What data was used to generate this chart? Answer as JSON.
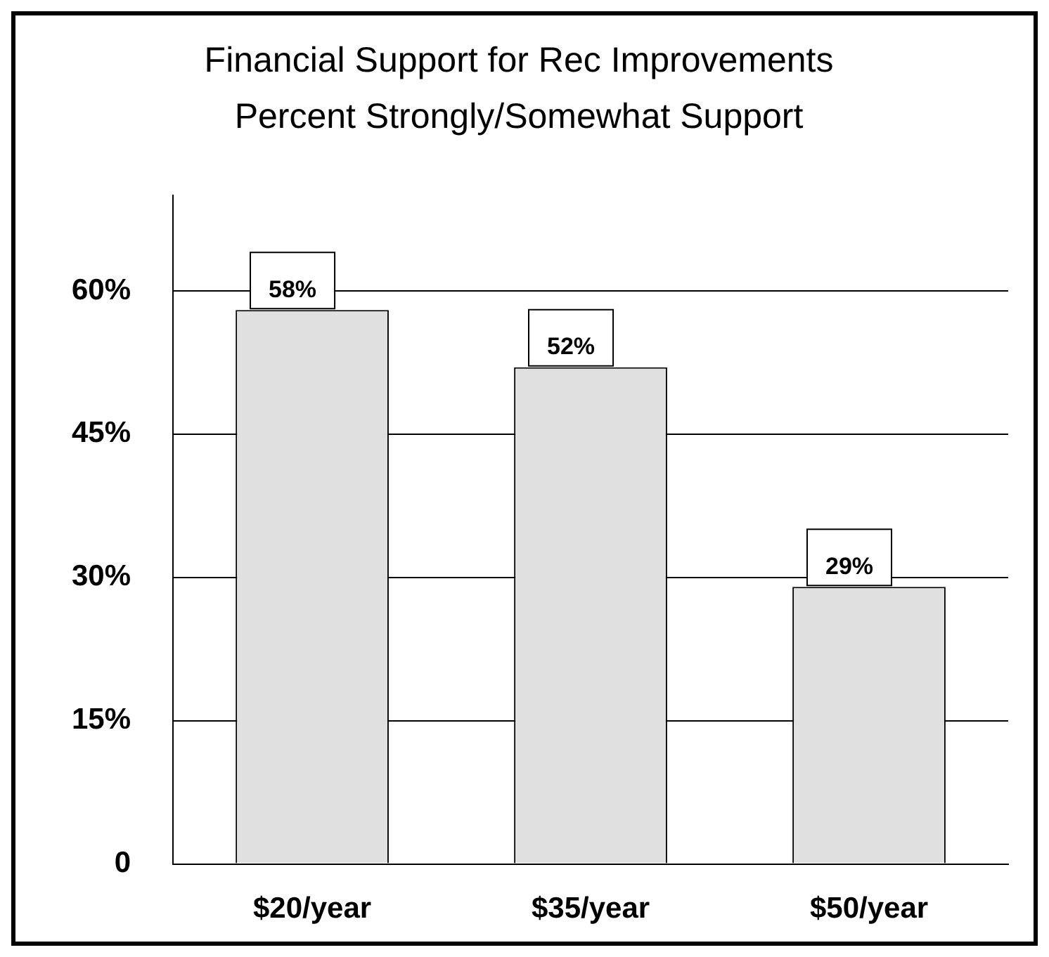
{
  "chart_data": {
    "type": "bar",
    "title": "Financial Support for Rec Improvements",
    "subtitle": "Percent Strongly/Somewhat Support",
    "categories": [
      "$20/year",
      "$35/year",
      "$50/year"
    ],
    "values": [
      58,
      52,
      29
    ],
    "color": "#e0e0e0",
    "value_labels": [
      "58%",
      "52%",
      "29%"
    ],
    "ylim": [
      0,
      70
    ],
    "yticks": [
      0,
      {
        "value": 15,
        "label": "15%"
      },
      {
        "value": 30,
        "label": "30%"
      },
      {
        "value": 45,
        "label": "45%"
      },
      {
        "value": 60,
        "label": "60%"
      }
    ],
    "grid": "y",
    "legend": false
  }
}
